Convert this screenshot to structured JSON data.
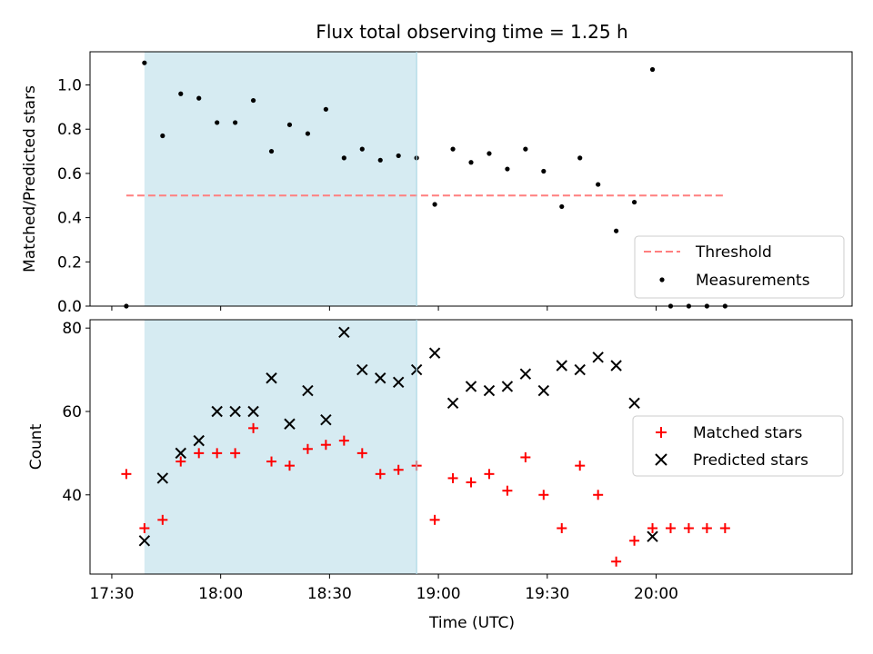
{
  "title": "Flux total observing time = 1.25 h",
  "xlabel": "Time (UTC)",
  "colors": {
    "threshold": "#ff7f7f",
    "measurements": "#000000",
    "matched": "#ff0000",
    "predicted": "#000000",
    "shade": "#add8e6"
  },
  "chart_data": [
    {
      "type": "scatter",
      "ylabel": "Matched/Predicted stars",
      "x_axis": {
        "range": [
          "17:24",
          "20:54"
        ],
        "tick_labels": [
          "17:30",
          "18:00",
          "18:30",
          "19:00",
          "19:30",
          "20:00"
        ],
        "tick_labels_visible": false
      },
      "ylim": [
        0.0,
        1.15
      ],
      "yticks": [
        0.0,
        0.2,
        0.4,
        0.6,
        0.8,
        1.0
      ],
      "ytick_labels": [
        "0.0",
        "0.2",
        "0.4",
        "0.6",
        "0.8",
        "1.0"
      ],
      "shaded_span": [
        "17:39",
        "18:54"
      ],
      "threshold": {
        "name": "Threshold",
        "value": 0.5,
        "x_range": [
          "17:34",
          "20:19"
        ],
        "style": "dashed"
      },
      "series": [
        {
          "name": "Measurements",
          "x": [
            "17:34",
            "17:39",
            "17:44",
            "17:49",
            "17:54",
            "17:59",
            "18:04",
            "18:09",
            "18:14",
            "18:19",
            "18:24",
            "18:29",
            "18:34",
            "18:39",
            "18:44",
            "18:49",
            "18:54",
            "18:59",
            "19:04",
            "19:09",
            "19:14",
            "19:19",
            "19:24",
            "19:29",
            "19:34",
            "19:39",
            "19:44",
            "19:49",
            "19:54",
            "19:59",
            "20:04",
            "20:09",
            "20:14",
            "20:19"
          ],
          "y": [
            0.0,
            1.1,
            0.77,
            0.96,
            0.94,
            0.83,
            0.83,
            0.93,
            0.7,
            0.82,
            0.78,
            0.89,
            0.67,
            0.71,
            0.66,
            0.68,
            0.67,
            0.46,
            0.71,
            0.65,
            0.69,
            0.62,
            0.71,
            0.61,
            0.45,
            0.67,
            0.55,
            0.34,
            0.47,
            1.07,
            0.0,
            0.0,
            0.0,
            0.0
          ]
        }
      ],
      "legend": {
        "placement": "lower-right",
        "entries": [
          "Threshold",
          "Measurements"
        ]
      }
    },
    {
      "type": "scatter",
      "ylabel": "Count",
      "x_axis": {
        "range": [
          "17:24",
          "20:54"
        ],
        "tick_labels": [
          "17:30",
          "18:00",
          "18:30",
          "19:00",
          "19:30",
          "20:00"
        ]
      },
      "ylim": [
        21,
        82
      ],
      "yticks": [
        40,
        60,
        80
      ],
      "ytick_labels": [
        "40",
        "60",
        "80"
      ],
      "shaded_span": [
        "17:39",
        "18:54"
      ],
      "series": [
        {
          "name": "Matched stars",
          "marker": "plus",
          "x": [
            "17:34",
            "17:39",
            "17:44",
            "17:49",
            "17:54",
            "17:59",
            "18:04",
            "18:09",
            "18:14",
            "18:19",
            "18:24",
            "18:29",
            "18:34",
            "18:39",
            "18:44",
            "18:49",
            "18:54",
            "18:59",
            "19:04",
            "19:09",
            "19:14",
            "19:19",
            "19:24",
            "19:29",
            "19:34",
            "19:39",
            "19:44",
            "19:49",
            "19:54",
            "19:59",
            "20:04",
            "20:09",
            "20:14",
            "20:19"
          ],
          "y": [
            45,
            32,
            34,
            48,
            50,
            50,
            50,
            56,
            48,
            47,
            51,
            52,
            53,
            50,
            45,
            46,
            47,
            34,
            44,
            43,
            45,
            41,
            49,
            40,
            32,
            47,
            40,
            24,
            29,
            32,
            32,
            32,
            32,
            32
          ]
        },
        {
          "name": "Predicted stars",
          "marker": "x",
          "x": [
            "17:39",
            "17:44",
            "17:49",
            "17:54",
            "17:59",
            "18:04",
            "18:09",
            "18:14",
            "18:19",
            "18:24",
            "18:29",
            "18:34",
            "18:39",
            "18:44",
            "18:49",
            "18:54",
            "18:59",
            "19:04",
            "19:09",
            "19:14",
            "19:19",
            "19:24",
            "19:29",
            "19:34",
            "19:39",
            "19:44",
            "19:49",
            "19:54",
            "19:59"
          ],
          "y": [
            29,
            44,
            50,
            53,
            60,
            60,
            60,
            68,
            57,
            65,
            58,
            79,
            70,
            68,
            67,
            70,
            74,
            62,
            66,
            65,
            66,
            69,
            65,
            71,
            70,
            73,
            71,
            62,
            30
          ]
        }
      ],
      "legend": {
        "placement": "center-right",
        "entries": [
          "Matched stars",
          "Predicted stars"
        ]
      }
    }
  ]
}
